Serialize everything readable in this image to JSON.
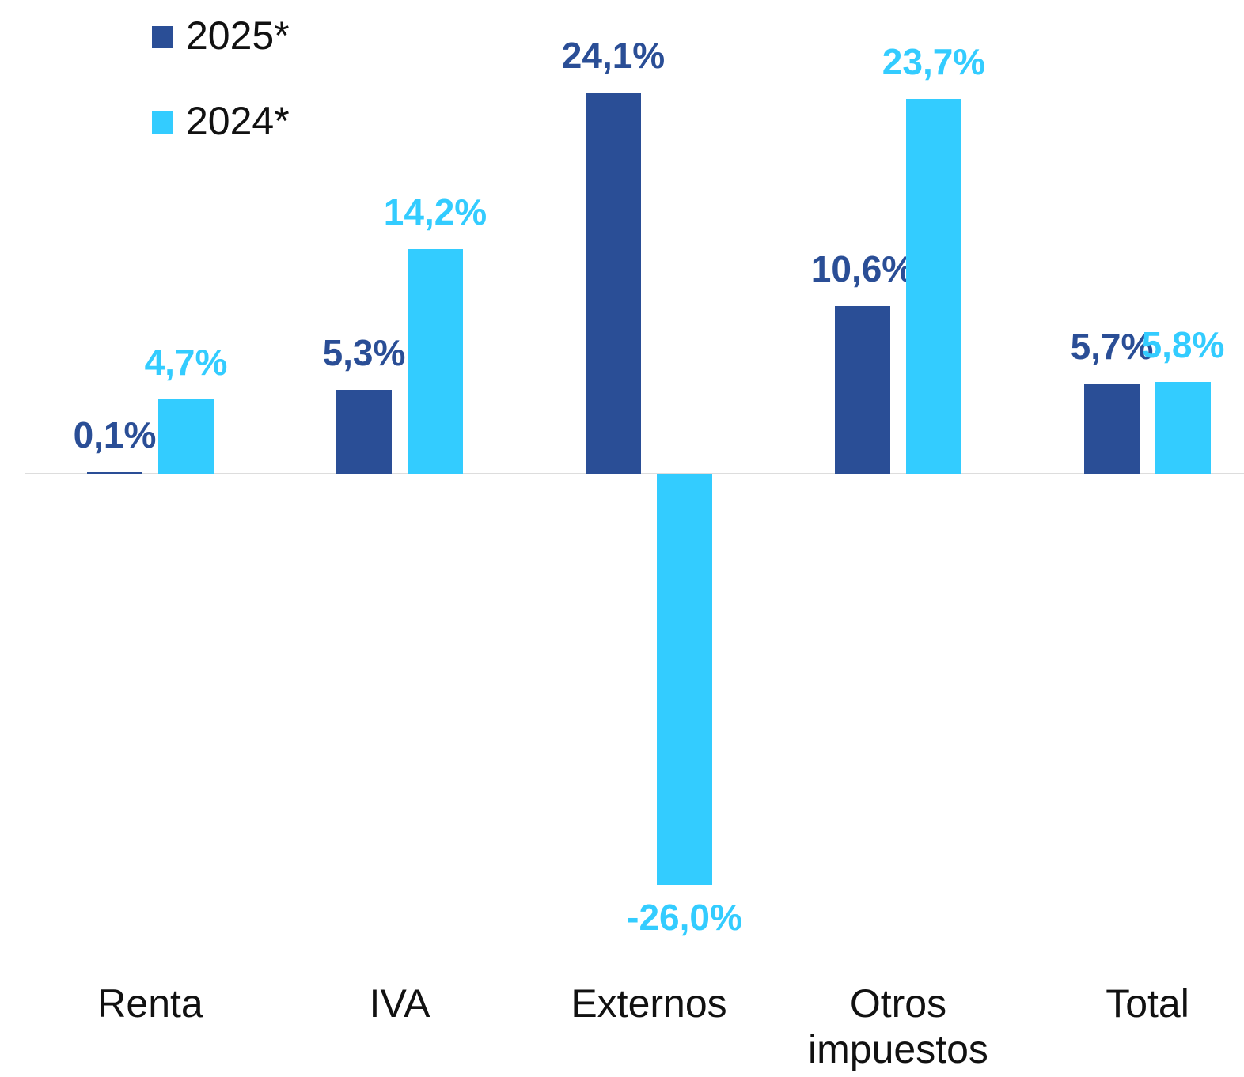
{
  "chart_data": {
    "type": "bar",
    "categories": [
      "Renta",
      "IVA",
      "Externos",
      "Otros impuestos",
      "Total"
    ],
    "series": [
      {
        "name": "2025*",
        "color": "#2a4e96",
        "values": [
          0.1,
          5.3,
          24.1,
          10.6,
          5.7
        ],
        "value_labels": [
          "0,1%",
          "5,3%",
          "24,1%",
          "10,6%",
          "5,7%"
        ]
      },
      {
        "name": "2024*",
        "color": "#33ccff",
        "values": [
          4.7,
          14.2,
          -26.0,
          23.7,
          5.8
        ],
        "value_labels": [
          "4,7%",
          "14,2%",
          "-26,0%",
          "23,7%",
          "5,8%"
        ]
      }
    ]
  }
}
